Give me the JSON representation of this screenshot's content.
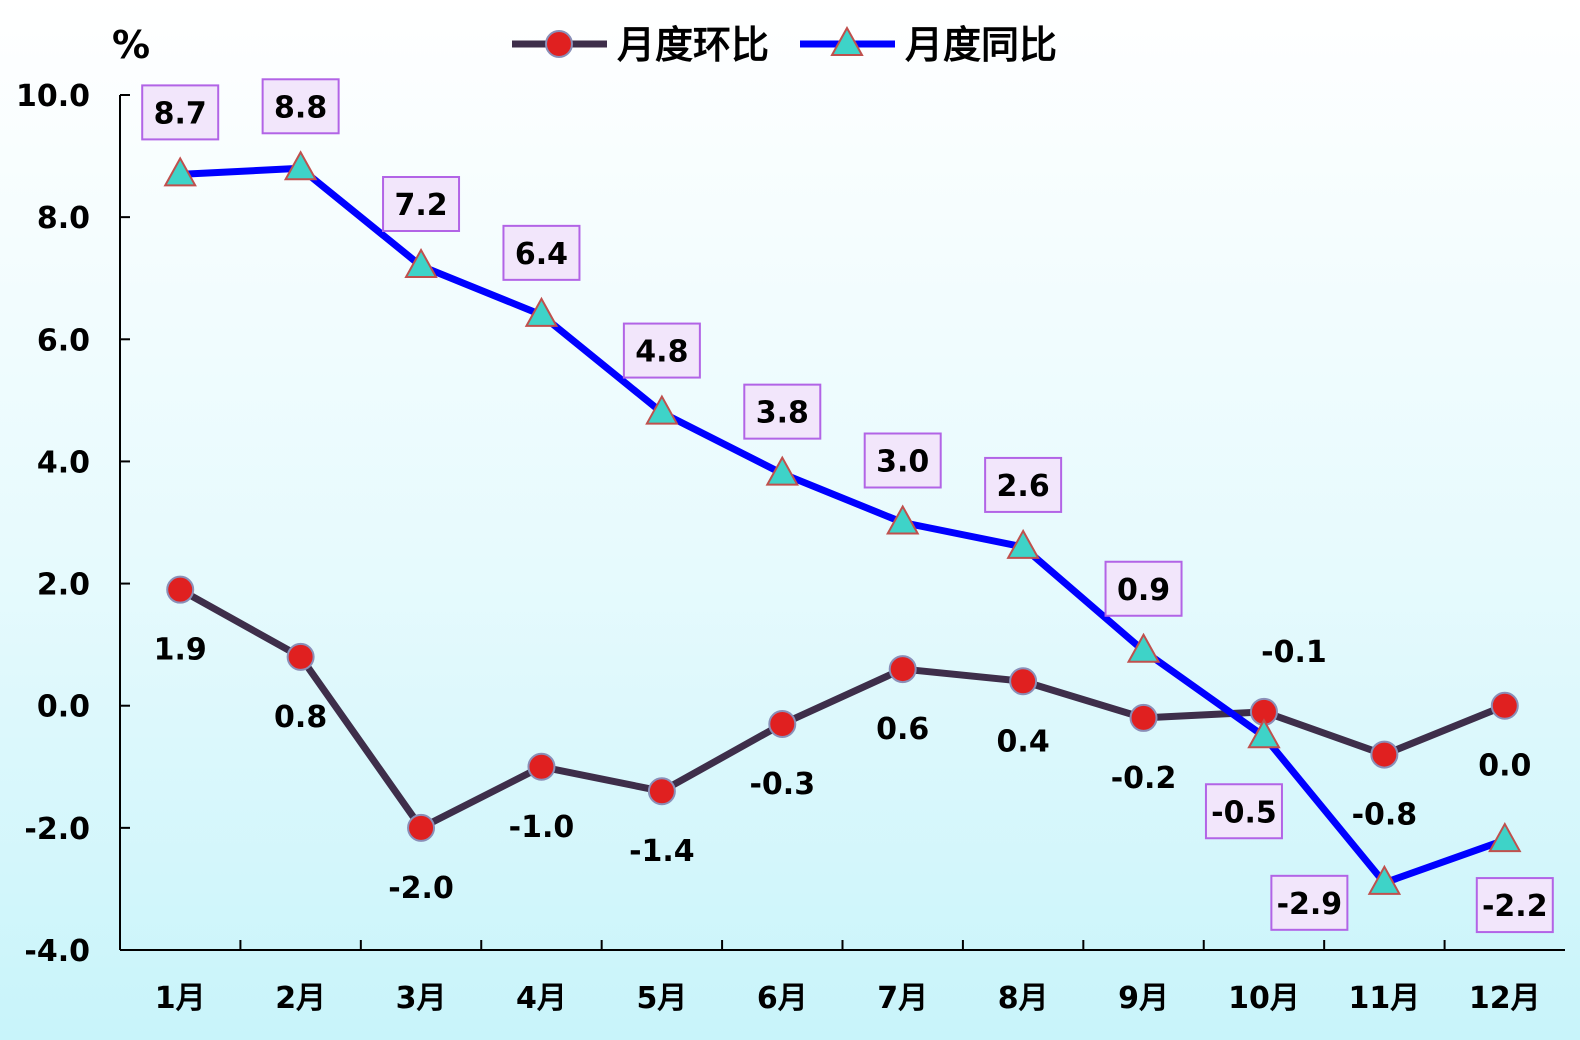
{
  "chart_data": {
    "type": "line",
    "categories": [
      "1月",
      "2月",
      "3月",
      "4月",
      "5月",
      "6月",
      "7月",
      "8月",
      "9月",
      "10月",
      "11月",
      "12月"
    ],
    "ylabel": "%",
    "ylim": [
      -4.0,
      10.0
    ],
    "yticks": [
      "-4.0",
      "-2.0",
      "0.0",
      "2.0",
      "4.0",
      "6.0",
      "8.0",
      "10.0"
    ],
    "legend_position": "top-center",
    "grid": false,
    "series": [
      {
        "name": "月度环比",
        "color": "#3e2e4a",
        "marker": "circle",
        "marker_color": "#e02020",
        "values": [
          1.9,
          0.8,
          -2.0,
          -1.0,
          -1.4,
          -0.3,
          0.6,
          0.4,
          -0.2,
          -0.1,
          -0.8,
          0.0
        ],
        "labels": [
          "1.9",
          "0.8",
          "-2.0",
          "-1.0",
          "-1.4",
          "-0.3",
          "0.6",
          "0.4",
          "-0.2",
          "-0.1",
          "-0.8",
          "0.0"
        ]
      },
      {
        "name": "月度同比",
        "color": "#0000ff",
        "marker": "triangle",
        "marker_color": "#3ed3c8",
        "label_box_color": "#b264e6",
        "label_box_fill": "#f2e6fb",
        "values": [
          8.7,
          8.8,
          7.2,
          6.4,
          4.8,
          3.8,
          3.0,
          2.6,
          0.9,
          -0.5,
          -2.9,
          -2.2
        ],
        "labels": [
          "8.7",
          "8.8",
          "7.2",
          "6.4",
          "4.8",
          "3.8",
          "3.0",
          "2.6",
          "0.9",
          "-0.5",
          "-2.9",
          "-2.2"
        ]
      }
    ]
  }
}
